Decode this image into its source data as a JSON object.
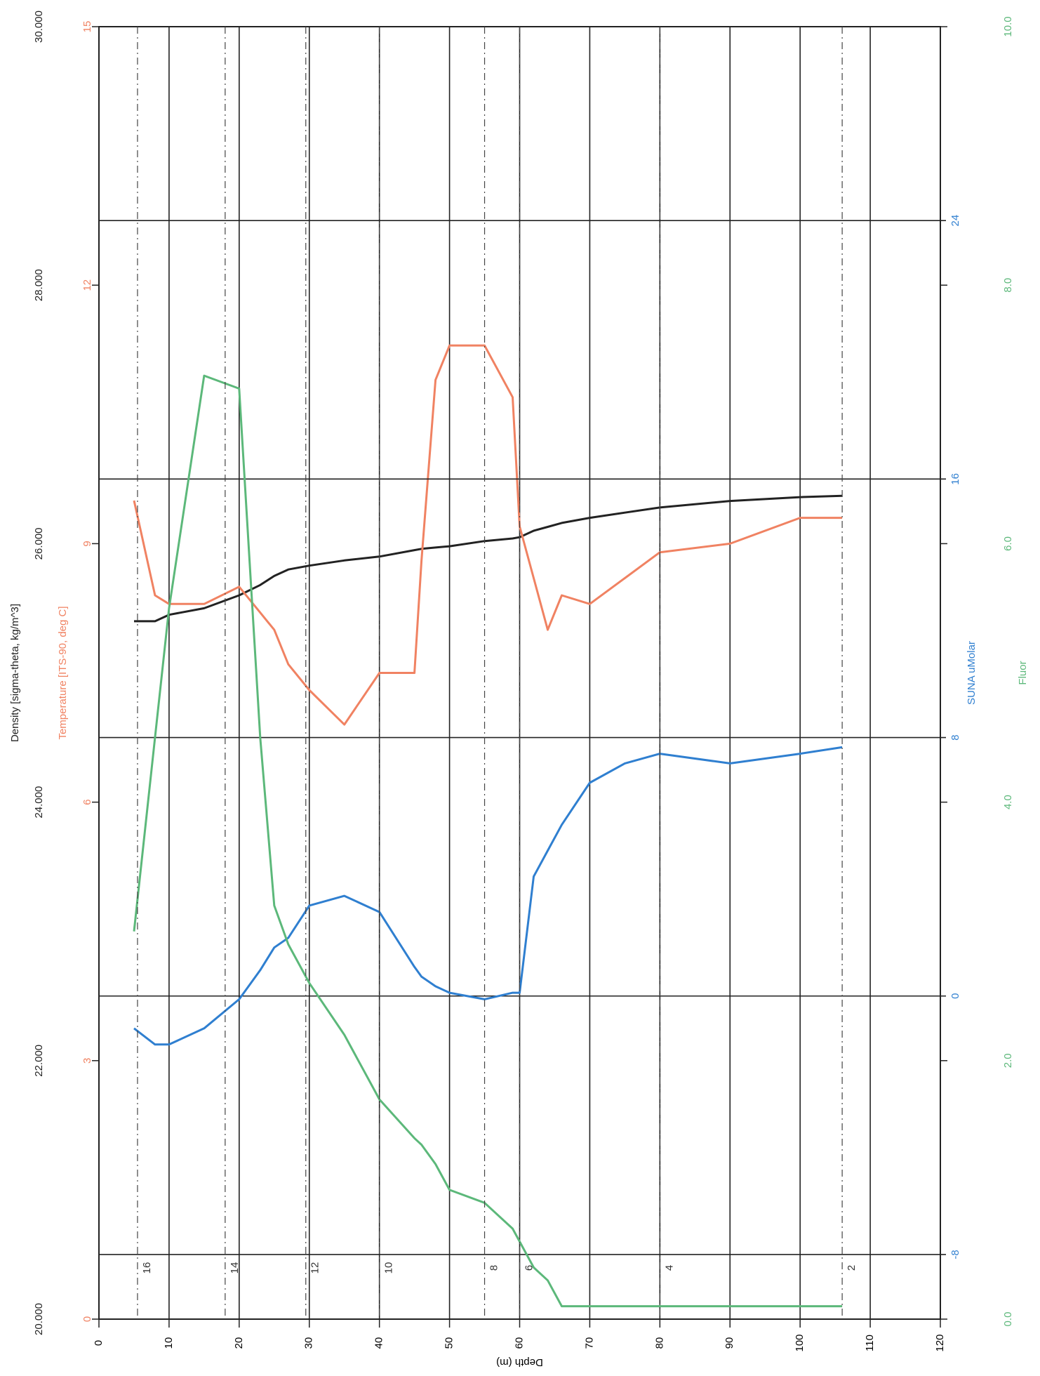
{
  "chart_data": {
    "type": "line",
    "x_label": "Depth (m)",
    "x": [
      5,
      8,
      10,
      15,
      20,
      23,
      25,
      27,
      30,
      35,
      40,
      45,
      46,
      48,
      50,
      55,
      59,
      60,
      62,
      64,
      66,
      70,
      75,
      80,
      90,
      100,
      106
    ],
    "xlim": [
      0,
      120
    ],
    "xticks": [
      0,
      10,
      20,
      30,
      40,
      50,
      60,
      70,
      80,
      90,
      100,
      110,
      120
    ],
    "grid": true,
    "y_axes": [
      {
        "label": "Density [sigma-theta, kg/m^3]",
        "color": "#222222",
        "ylim": [
          20,
          30
        ],
        "yticks": [
          {
            "value": 20,
            "label": "20.000"
          },
          {
            "value": 22,
            "label": "22.000"
          },
          {
            "value": 24,
            "label": "24.000"
          },
          {
            "value": 26,
            "label": "26.000"
          },
          {
            "value": 28,
            "label": "28.000"
          },
          {
            "value": 30,
            "label": "30.000"
          }
        ],
        "values": [
          25.4,
          25.4,
          25.45,
          25.5,
          25.6,
          25.68,
          25.75,
          25.8,
          25.83,
          25.87,
          25.9,
          25.95,
          25.96,
          25.97,
          25.98,
          26.02,
          26.04,
          26.05,
          26.1,
          26.13,
          26.16,
          26.2,
          26.24,
          26.28,
          26.33,
          26.36,
          26.37
        ]
      },
      {
        "label": "Temperature [ITS-90, deg C]",
        "color": "#f08262",
        "ylim": [
          0,
          15
        ],
        "yticks": [
          0,
          3,
          6,
          9,
          12,
          15
        ],
        "values": [
          9.5,
          8.4,
          8.3,
          8.3,
          8.5,
          8.2,
          8.0,
          7.6,
          7.3,
          6.9,
          7.5,
          7.5,
          8.8,
          10.9,
          11.3,
          11.3,
          10.7,
          9.2,
          8.6,
          8.0,
          8.4,
          8.3,
          8.6,
          8.9,
          9.0,
          9.3,
          9.3
        ]
      },
      {
        "label": "SUNA uMolar",
        "color": "#2f7fd0",
        "ylim": [
          -10,
          30
        ],
        "yticks": [
          -8,
          0,
          8,
          16,
          24
        ],
        "values": [
          -1.0,
          -1.5,
          -1.5,
          -1.0,
          -0.1,
          0.8,
          1.5,
          1.8,
          2.8,
          3.1,
          2.6,
          0.9,
          0.6,
          0.3,
          0.1,
          -0.1,
          0.1,
          0.1,
          3.7,
          4.5,
          5.3,
          6.6,
          7.2,
          7.5,
          7.2,
          7.5,
          7.7
        ]
      },
      {
        "label": "Fluor",
        "color": "#5cb87a",
        "ylim": [
          0,
          10
        ],
        "yticks": [
          {
            "value": 0,
            "label": "0.0"
          },
          {
            "value": 2,
            "label": "2.0"
          },
          {
            "value": 4,
            "label": "4.0"
          },
          {
            "value": 6,
            "label": "6.0"
          },
          {
            "value": 8,
            "label": "8.0"
          },
          {
            "value": 10,
            "label": "10.0"
          }
        ],
        "values": [
          3.0,
          4.5,
          5.5,
          7.3,
          7.2,
          4.5,
          3.2,
          2.9,
          2.6,
          2.2,
          1.7,
          1.4,
          1.35,
          1.2,
          1.0,
          0.9,
          0.7,
          0.6,
          0.4,
          0.3,
          0.1,
          0.1,
          0.1,
          0.1,
          0.1,
          0.1,
          0.1
        ]
      }
    ],
    "bottles": [
      {
        "depth": 5.5,
        "label": "16"
      },
      {
        "depth": 18,
        "label": "14"
      },
      {
        "depth": 29.5,
        "label": "12"
      },
      {
        "depth": 40,
        "label": "10"
      },
      {
        "depth": 55,
        "label": "8"
      },
      {
        "depth": 60,
        "label": "6"
      },
      {
        "depth": 80,
        "label": "4"
      },
      {
        "depth": 106,
        "label": "2"
      }
    ]
  }
}
